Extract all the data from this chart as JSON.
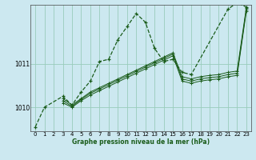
{
  "title": "Graphe pression niveau de la mer (hPa)",
  "background_color": "#cce8f0",
  "grid_color": "#99ccbb",
  "line_color": "#1a5c1a",
  "yticks": [
    1010,
    1011
  ],
  "xlim": [
    -0.5,
    23.5
  ],
  "ylim": [
    1009.45,
    1012.35
  ],
  "xticks": [
    0,
    1,
    2,
    3,
    4,
    5,
    6,
    7,
    8,
    9,
    10,
    11,
    12,
    13,
    14,
    15,
    16,
    17,
    18,
    19,
    20,
    21,
    22,
    23
  ],
  "series1": {
    "x": [
      0,
      1,
      3,
      4,
      5,
      6,
      7,
      8,
      9,
      10,
      11,
      12,
      13,
      14,
      15,
      16,
      17,
      21,
      22,
      23
    ],
    "y": [
      1009.55,
      1010.0,
      1010.25,
      1010.05,
      1010.35,
      1010.6,
      1011.05,
      1011.1,
      1011.55,
      1011.85,
      1012.15,
      1011.95,
      1011.35,
      1011.05,
      1011.1,
      1010.8,
      1010.75,
      1012.25,
      1012.4,
      1012.3
    ],
    "linestyle": "--",
    "linewidth": 0.9,
    "markersize": 3.5
  },
  "series2": {
    "x": [
      3,
      4,
      5,
      6,
      7,
      8,
      9,
      10,
      11,
      12,
      13,
      14,
      15,
      16,
      17,
      18,
      19,
      20,
      21,
      22,
      23
    ],
    "y": [
      1010.2,
      1010.05,
      1010.2,
      1010.35,
      1010.45,
      1010.55,
      1010.65,
      1010.75,
      1010.85,
      1010.95,
      1011.05,
      1011.15,
      1011.25,
      1010.7,
      1010.65,
      1010.7,
      1010.73,
      1010.75,
      1010.8,
      1010.83,
      1012.28
    ],
    "linestyle": "-",
    "linewidth": 0.7,
    "markersize": 2.5
  },
  "series3": {
    "x": [
      3,
      4,
      5,
      6,
      7,
      8,
      9,
      10,
      11,
      12,
      13,
      14,
      15,
      16,
      17,
      18,
      19,
      20,
      21,
      22,
      23
    ],
    "y": [
      1010.15,
      1010.02,
      1010.18,
      1010.32,
      1010.42,
      1010.52,
      1010.62,
      1010.72,
      1010.82,
      1010.92,
      1011.02,
      1011.12,
      1011.22,
      1010.65,
      1010.6,
      1010.65,
      1010.68,
      1010.7,
      1010.75,
      1010.78,
      1012.24
    ],
    "linestyle": "-",
    "linewidth": 0.7,
    "markersize": 2.5
  },
  "series4": {
    "x": [
      3,
      4,
      5,
      6,
      7,
      8,
      9,
      10,
      11,
      12,
      13,
      14,
      15,
      16,
      17,
      18,
      19,
      20,
      21,
      22,
      23
    ],
    "y": [
      1010.1,
      1010.0,
      1010.15,
      1010.28,
      1010.38,
      1010.48,
      1010.58,
      1010.68,
      1010.78,
      1010.88,
      1010.98,
      1011.08,
      1011.18,
      1010.6,
      1010.55,
      1010.6,
      1010.63,
      1010.65,
      1010.7,
      1010.73,
      1012.2
    ],
    "linestyle": "-",
    "linewidth": 0.7,
    "markersize": 2.5
  }
}
